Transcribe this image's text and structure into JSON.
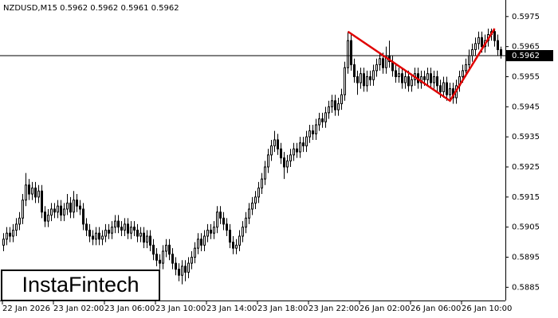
{
  "chart_data": {
    "type": "candlestick",
    "header": "NZDUSD,M15  0.5962 0.5962 0.5961 0.5962",
    "logo": "InstaFintech",
    "ylim": [
      0.58806,
      0.59805
    ],
    "yticks": [
      0.5885,
      0.5895,
      0.5905,
      0.5915,
      0.5925,
      0.5935,
      0.5945,
      0.5955,
      0.5965,
      0.5975
    ],
    "xticks": [
      {
        "value": 0,
        "label": "22 Jan 2026"
      },
      {
        "value": 16,
        "label": "23 Jan 02:00"
      },
      {
        "value": 32,
        "label": "23 Jan 06:00"
      },
      {
        "value": 48,
        "label": "23 Jan 10:00"
      },
      {
        "value": 64,
        "label": "23 Jan 14:00"
      },
      {
        "value": 80,
        "label": "23 Jan 18:00"
      },
      {
        "value": 96,
        "label": "23 Jan 22:00"
      },
      {
        "value": 112,
        "label": "26 Jan 02:00"
      },
      {
        "value": 128,
        "label": "26 Jan 06:00"
      },
      {
        "value": 144,
        "label": "26 Jan 10:00"
      }
    ],
    "last_price": 0.5962,
    "up_color": "#ffffff",
    "down_color": "#000000",
    "line_color": "#000000",
    "pattern": {
      "color": "#e00000",
      "points": [
        [
          108,
          0.597
        ],
        [
          140,
          0.5947
        ],
        [
          154,
          0.5971
        ]
      ]
    },
    "candles": [
      [
        0.5899,
        0.5903,
        0.5897,
        0.5901
      ],
      [
        0.5901,
        0.5905,
        0.5899,
        0.5903
      ],
      [
        0.5903,
        0.5905,
        0.59,
        0.5902
      ],
      [
        0.5902,
        0.5906,
        0.59,
        0.5904
      ],
      [
        0.5904,
        0.5908,
        0.5902,
        0.5906
      ],
      [
        0.5906,
        0.591,
        0.5904,
        0.5908
      ],
      [
        0.5908,
        0.5916,
        0.5906,
        0.5914
      ],
      [
        0.5914,
        0.5923,
        0.5912,
        0.5919
      ],
      [
        0.5919,
        0.5921,
        0.5914,
        0.5916
      ],
      [
        0.5916,
        0.592,
        0.5914,
        0.5918
      ],
      [
        0.5918,
        0.592,
        0.5913,
        0.5915
      ],
      [
        0.5915,
        0.5919,
        0.5913,
        0.5917
      ],
      [
        0.5917,
        0.5919,
        0.5908,
        0.591
      ],
      [
        0.591,
        0.5912,
        0.5905,
        0.5907
      ],
      [
        0.5907,
        0.5911,
        0.5905,
        0.5909
      ],
      [
        0.5909,
        0.5913,
        0.5907,
        0.5911
      ],
      [
        0.5911,
        0.5913,
        0.5908,
        0.591
      ],
      [
        0.591,
        0.5914,
        0.5908,
        0.5912
      ],
      [
        0.5912,
        0.5914,
        0.5907,
        0.5909
      ],
      [
        0.5909,
        0.5913,
        0.5907,
        0.5911
      ],
      [
        0.5911,
        0.5916,
        0.5909,
        0.5913
      ],
      [
        0.5913,
        0.5915,
        0.5908,
        0.591
      ],
      [
        0.591,
        0.5917,
        0.5908,
        0.5914
      ],
      [
        0.5914,
        0.5916,
        0.591,
        0.5912
      ],
      [
        0.5912,
        0.5914,
        0.5909,
        0.5911
      ],
      [
        0.5911,
        0.5913,
        0.5904,
        0.5906
      ],
      [
        0.5906,
        0.5908,
        0.5902,
        0.5904
      ],
      [
        0.5904,
        0.5906,
        0.59,
        0.5902
      ],
      [
        0.5902,
        0.5904,
        0.5899,
        0.5901
      ],
      [
        0.5901,
        0.5905,
        0.5899,
        0.5903
      ],
      [
        0.5903,
        0.5905,
        0.5899,
        0.5901
      ],
      [
        0.5901,
        0.5904,
        0.5899,
        0.5902
      ],
      [
        0.5902,
        0.5906,
        0.59,
        0.5904
      ],
      [
        0.5904,
        0.5906,
        0.5901,
        0.5903
      ],
      [
        0.5903,
        0.5907,
        0.5901,
        0.5905
      ],
      [
        0.5905,
        0.5909,
        0.5903,
        0.5907
      ],
      [
        0.5907,
        0.5909,
        0.5903,
        0.5905
      ],
      [
        0.5905,
        0.5907,
        0.5902,
        0.5904
      ],
      [
        0.5904,
        0.5908,
        0.5902,
        0.5906
      ],
      [
        0.5906,
        0.5908,
        0.5901,
        0.5903
      ],
      [
        0.5903,
        0.5907,
        0.5901,
        0.5905
      ],
      [
        0.5905,
        0.5907,
        0.5902,
        0.5904
      ],
      [
        0.5904,
        0.5906,
        0.59,
        0.5902
      ],
      [
        0.5902,
        0.5905,
        0.59,
        0.5903
      ],
      [
        0.5903,
        0.5905,
        0.5898,
        0.59
      ],
      [
        0.59,
        0.5904,
        0.5898,
        0.5902
      ],
      [
        0.5902,
        0.5904,
        0.5897,
        0.5899
      ],
      [
        0.5899,
        0.5901,
        0.5894,
        0.5896
      ],
      [
        0.5896,
        0.5898,
        0.5892,
        0.5894
      ],
      [
        0.5894,
        0.5896,
        0.5891,
        0.5893
      ],
      [
        0.5893,
        0.5899,
        0.5891,
        0.5897
      ],
      [
        0.5897,
        0.5901,
        0.5895,
        0.5899
      ],
      [
        0.5899,
        0.5901,
        0.5894,
        0.5896
      ],
      [
        0.5896,
        0.5898,
        0.5891,
        0.5893
      ],
      [
        0.5893,
        0.5895,
        0.5889,
        0.5891
      ],
      [
        0.5891,
        0.5893,
        0.5887,
        0.5889
      ],
      [
        0.5889,
        0.5894,
        0.5886,
        0.5892
      ],
      [
        0.5892,
        0.5894,
        0.5887,
        0.589
      ],
      [
        0.589,
        0.5895,
        0.5888,
        0.5893
      ],
      [
        0.5893,
        0.5897,
        0.5891,
        0.5895
      ],
      [
        0.5895,
        0.59,
        0.5893,
        0.5898
      ],
      [
        0.5898,
        0.5903,
        0.5896,
        0.5901
      ],
      [
        0.5901,
        0.5903,
        0.5897,
        0.5899
      ],
      [
        0.5899,
        0.5904,
        0.5897,
        0.5902
      ],
      [
        0.5902,
        0.5906,
        0.59,
        0.5904
      ],
      [
        0.5904,
        0.5906,
        0.5901,
        0.5903
      ],
      [
        0.5903,
        0.5907,
        0.5901,
        0.5905
      ],
      [
        0.5905,
        0.5912,
        0.5903,
        0.591
      ],
      [
        0.591,
        0.5912,
        0.5906,
        0.5908
      ],
      [
        0.5908,
        0.591,
        0.5904,
        0.5906
      ],
      [
        0.5906,
        0.5908,
        0.5902,
        0.5904
      ],
      [
        0.5904,
        0.5906,
        0.5898,
        0.59
      ],
      [
        0.59,
        0.5902,
        0.5896,
        0.5898
      ],
      [
        0.5898,
        0.5901,
        0.5896,
        0.5899
      ],
      [
        0.5899,
        0.5904,
        0.5897,
        0.5902
      ],
      [
        0.5902,
        0.5907,
        0.59,
        0.5905
      ],
      [
        0.5905,
        0.591,
        0.5903,
        0.5908
      ],
      [
        0.5908,
        0.5913,
        0.5906,
        0.5911
      ],
      [
        0.5911,
        0.5915,
        0.5909,
        0.5913
      ],
      [
        0.5913,
        0.5917,
        0.5911,
        0.5915
      ],
      [
        0.5915,
        0.592,
        0.5913,
        0.5918
      ],
      [
        0.5918,
        0.5923,
        0.5916,
        0.5921
      ],
      [
        0.5921,
        0.5927,
        0.5919,
        0.5925
      ],
      [
        0.5925,
        0.5931,
        0.5923,
        0.5929
      ],
      [
        0.5929,
        0.5934,
        0.5927,
        0.5932
      ],
      [
        0.5932,
        0.5937,
        0.593,
        0.5934
      ],
      [
        0.5934,
        0.5936,
        0.5929,
        0.5931
      ],
      [
        0.5931,
        0.5933,
        0.5926,
        0.5928
      ],
      [
        0.5928,
        0.593,
        0.5921,
        0.5925
      ],
      [
        0.5925,
        0.5929,
        0.5923,
        0.5927
      ],
      [
        0.5927,
        0.5931,
        0.5925,
        0.5929
      ],
      [
        0.5929,
        0.5933,
        0.5927,
        0.5931
      ],
      [
        0.5931,
        0.5933,
        0.5928,
        0.593
      ],
      [
        0.593,
        0.5935,
        0.5928,
        0.5933
      ],
      [
        0.5933,
        0.5935,
        0.593,
        0.5932
      ],
      [
        0.5932,
        0.5937,
        0.593,
        0.5935
      ],
      [
        0.5935,
        0.5939,
        0.5933,
        0.5937
      ],
      [
        0.5937,
        0.5939,
        0.5934,
        0.5936
      ],
      [
        0.5936,
        0.5941,
        0.5934,
        0.5939
      ],
      [
        0.5939,
        0.5943,
        0.5937,
        0.5941
      ],
      [
        0.5941,
        0.5943,
        0.5938,
        0.594
      ],
      [
        0.594,
        0.5945,
        0.5938,
        0.5943
      ],
      [
        0.5943,
        0.5947,
        0.5941,
        0.5945
      ],
      [
        0.5945,
        0.5949,
        0.5943,
        0.5947
      ],
      [
        0.5947,
        0.5949,
        0.5942,
        0.5944
      ],
      [
        0.5944,
        0.5948,
        0.5942,
        0.5946
      ],
      [
        0.5946,
        0.5951,
        0.5944,
        0.5949
      ],
      [
        0.5949,
        0.596,
        0.5947,
        0.5958
      ],
      [
        0.5958,
        0.597,
        0.5956,
        0.5967
      ],
      [
        0.5967,
        0.5969,
        0.5957,
        0.5959
      ],
      [
        0.5959,
        0.5961,
        0.5953,
        0.5955
      ],
      [
        0.5955,
        0.5957,
        0.5949,
        0.5953
      ],
      [
        0.5953,
        0.5958,
        0.5951,
        0.5956
      ],
      [
        0.5956,
        0.5958,
        0.595,
        0.5952
      ],
      [
        0.5952,
        0.5957,
        0.595,
        0.5955
      ],
      [
        0.5955,
        0.5957,
        0.5952,
        0.5954
      ],
      [
        0.5954,
        0.5959,
        0.5952,
        0.5957
      ],
      [
        0.5957,
        0.5961,
        0.5955,
        0.5959
      ],
      [
        0.5959,
        0.5963,
        0.5957,
        0.5961
      ],
      [
        0.5961,
        0.5963,
        0.5956,
        0.5958
      ],
      [
        0.5958,
        0.5965,
        0.5956,
        0.5962
      ],
      [
        0.5962,
        0.5967,
        0.5958,
        0.596
      ],
      [
        0.596,
        0.5962,
        0.5955,
        0.5957
      ],
      [
        0.5957,
        0.5959,
        0.5953,
        0.5955
      ],
      [
        0.5955,
        0.5958,
        0.5953,
        0.5956
      ],
      [
        0.5956,
        0.5958,
        0.5951,
        0.5953
      ],
      [
        0.5953,
        0.5957,
        0.5951,
        0.5955
      ],
      [
        0.5955,
        0.5957,
        0.595,
        0.5952
      ],
      [
        0.5952,
        0.5956,
        0.595,
        0.5954
      ],
      [
        0.5954,
        0.5958,
        0.5952,
        0.5956
      ],
      [
        0.5956,
        0.5958,
        0.5951,
        0.5953
      ],
      [
        0.5953,
        0.5957,
        0.5951,
        0.5955
      ],
      [
        0.5955,
        0.5957,
        0.5952,
        0.5954
      ],
      [
        0.5954,
        0.5958,
        0.5952,
        0.5956
      ],
      [
        0.5956,
        0.5958,
        0.5951,
        0.5953
      ],
      [
        0.5953,
        0.5957,
        0.5951,
        0.5955
      ],
      [
        0.5955,
        0.5957,
        0.595,
        0.5952
      ],
      [
        0.5952,
        0.5954,
        0.5948,
        0.595
      ],
      [
        0.595,
        0.5955,
        0.5948,
        0.5953
      ],
      [
        0.5953,
        0.5955,
        0.5947,
        0.5949
      ],
      [
        0.5949,
        0.5953,
        0.5947,
        0.5951
      ],
      [
        0.5951,
        0.5953,
        0.5946,
        0.5948
      ],
      [
        0.5948,
        0.5954,
        0.5946,
        0.5952
      ],
      [
        0.5952,
        0.5957,
        0.595,
        0.5955
      ],
      [
        0.5955,
        0.5959,
        0.5953,
        0.5957
      ],
      [
        0.5957,
        0.5961,
        0.5955,
        0.5959
      ],
      [
        0.5959,
        0.5964,
        0.5957,
        0.5962
      ],
      [
        0.5962,
        0.5966,
        0.596,
        0.5964
      ],
      [
        0.5964,
        0.5968,
        0.5962,
        0.5966
      ],
      [
        0.5966,
        0.597,
        0.5964,
        0.5968
      ],
      [
        0.5968,
        0.597,
        0.5963,
        0.5965
      ],
      [
        0.5965,
        0.5969,
        0.5963,
        0.5967
      ],
      [
        0.5967,
        0.5971,
        0.5965,
        0.5969
      ],
      [
        0.5969,
        0.5971,
        0.5967,
        0.597
      ],
      [
        0.597,
        0.5971,
        0.5965,
        0.5967
      ],
      [
        0.5967,
        0.5969,
        0.5962,
        0.5964
      ],
      [
        0.5964,
        0.5965,
        0.5961,
        0.5962
      ]
    ]
  }
}
